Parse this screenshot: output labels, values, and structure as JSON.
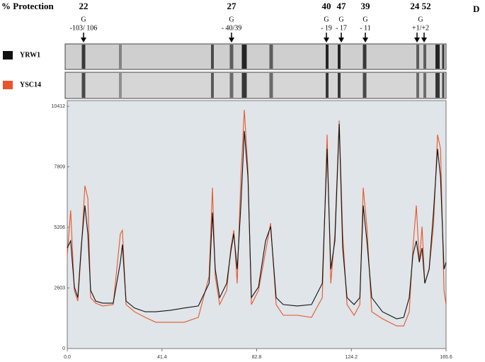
{
  "chart_data": {
    "type": "line",
    "header": "% Protection",
    "panel": "D",
    "annotations": [
      {
        "protection": "22",
        "base": "G",
        "position": "-103/ 106"
      },
      {
        "protection": "27",
        "base": "G",
        "position": "- 40/39"
      },
      {
        "protection": "40",
        "base": "G",
        "position": "- 19"
      },
      {
        "protection": "47",
        "base": "G",
        "position": "- 17"
      },
      {
        "protection": "39",
        "base": "G",
        "position": "- 11"
      },
      {
        "protection": "24 52",
        "base": "G",
        "position": "+1/+2"
      }
    ],
    "x": [
      0,
      1.5,
      3.1,
      4.6,
      6.2,
      7.7,
      9.0,
      10.2,
      12.4,
      15.5,
      20.1,
      23.2,
      24.1,
      25.7,
      29.4,
      34.1,
      38.7,
      44.9,
      51.1,
      57.3,
      62.0,
      63.5,
      64.7,
      66.6,
      69.7,
      71.5,
      72.8,
      74.3,
      75.9,
      77.4,
      79.0,
      80.5,
      83.6,
      86.7,
      88.9,
      91.3,
      94.4,
      100.6,
      106.8,
      111.5,
      113.6,
      115.2,
      117.0,
      118.9,
      120.4,
      122.3,
      125.4,
      127.9,
      129.4,
      131.0,
      133.1,
      137.8,
      144.0,
      147.1,
      149.5,
      151.1,
      152.6,
      153.9,
      155.1,
      156.3,
      158.2,
      160.1,
      161.9,
      163.2,
      164.7,
      165.6
    ],
    "series": [
      {
        "name": "YRW1",
        "color": "#111111",
        "values": [
          4320,
          4630,
          2650,
          2190,
          4470,
          6150,
          4930,
          2500,
          2040,
          1950,
          1950,
          3710,
          4470,
          2040,
          1740,
          1580,
          1580,
          1640,
          1740,
          1830,
          2800,
          5840,
          3410,
          2190,
          2800,
          4170,
          4930,
          3410,
          6150,
          9350,
          7370,
          2190,
          2650,
          4630,
          5240,
          2190,
          1890,
          1830,
          1890,
          2800,
          8580,
          3410,
          4630,
          9650,
          4320,
          2190,
          1890,
          2190,
          6150,
          4630,
          2190,
          1580,
          1280,
          1340,
          2190,
          4020,
          4630,
          3710,
          4320,
          2800,
          3410,
          5840,
          8580,
          7370,
          3410,
          3710
        ]
      },
      {
        "name": "YSC14",
        "color": "#e8552c",
        "values": [
          4020,
          5940,
          2500,
          2040,
          4320,
          7000,
          6450,
          2190,
          1950,
          1830,
          1890,
          4930,
          5080,
          1890,
          1580,
          1340,
          1130,
          1130,
          1130,
          1340,
          3100,
          6910,
          3100,
          1890,
          2500,
          4320,
          5080,
          2800,
          7370,
          10260,
          7670,
          1890,
          2500,
          4170,
          5390,
          1890,
          1430,
          1430,
          1340,
          2190,
          9190,
          2800,
          4930,
          9800,
          4930,
          1890,
          1430,
          1890,
          6910,
          5240,
          1580,
          1280,
          970,
          970,
          1580,
          4320,
          6150,
          3710,
          5240,
          2800,
          3410,
          5240,
          9190,
          8580,
          2500,
          1890
        ]
      }
    ],
    "xlim": [
      0,
      165.6
    ],
    "ylim": [
      0,
      10412
    ],
    "xticks": [
      {
        "value": 0,
        "label": "0.0"
      },
      41.4,
      82.8,
      124.2,
      165.6
    ],
    "yticks": [
      0,
      2603,
      5206,
      7809,
      10412
    ]
  }
}
